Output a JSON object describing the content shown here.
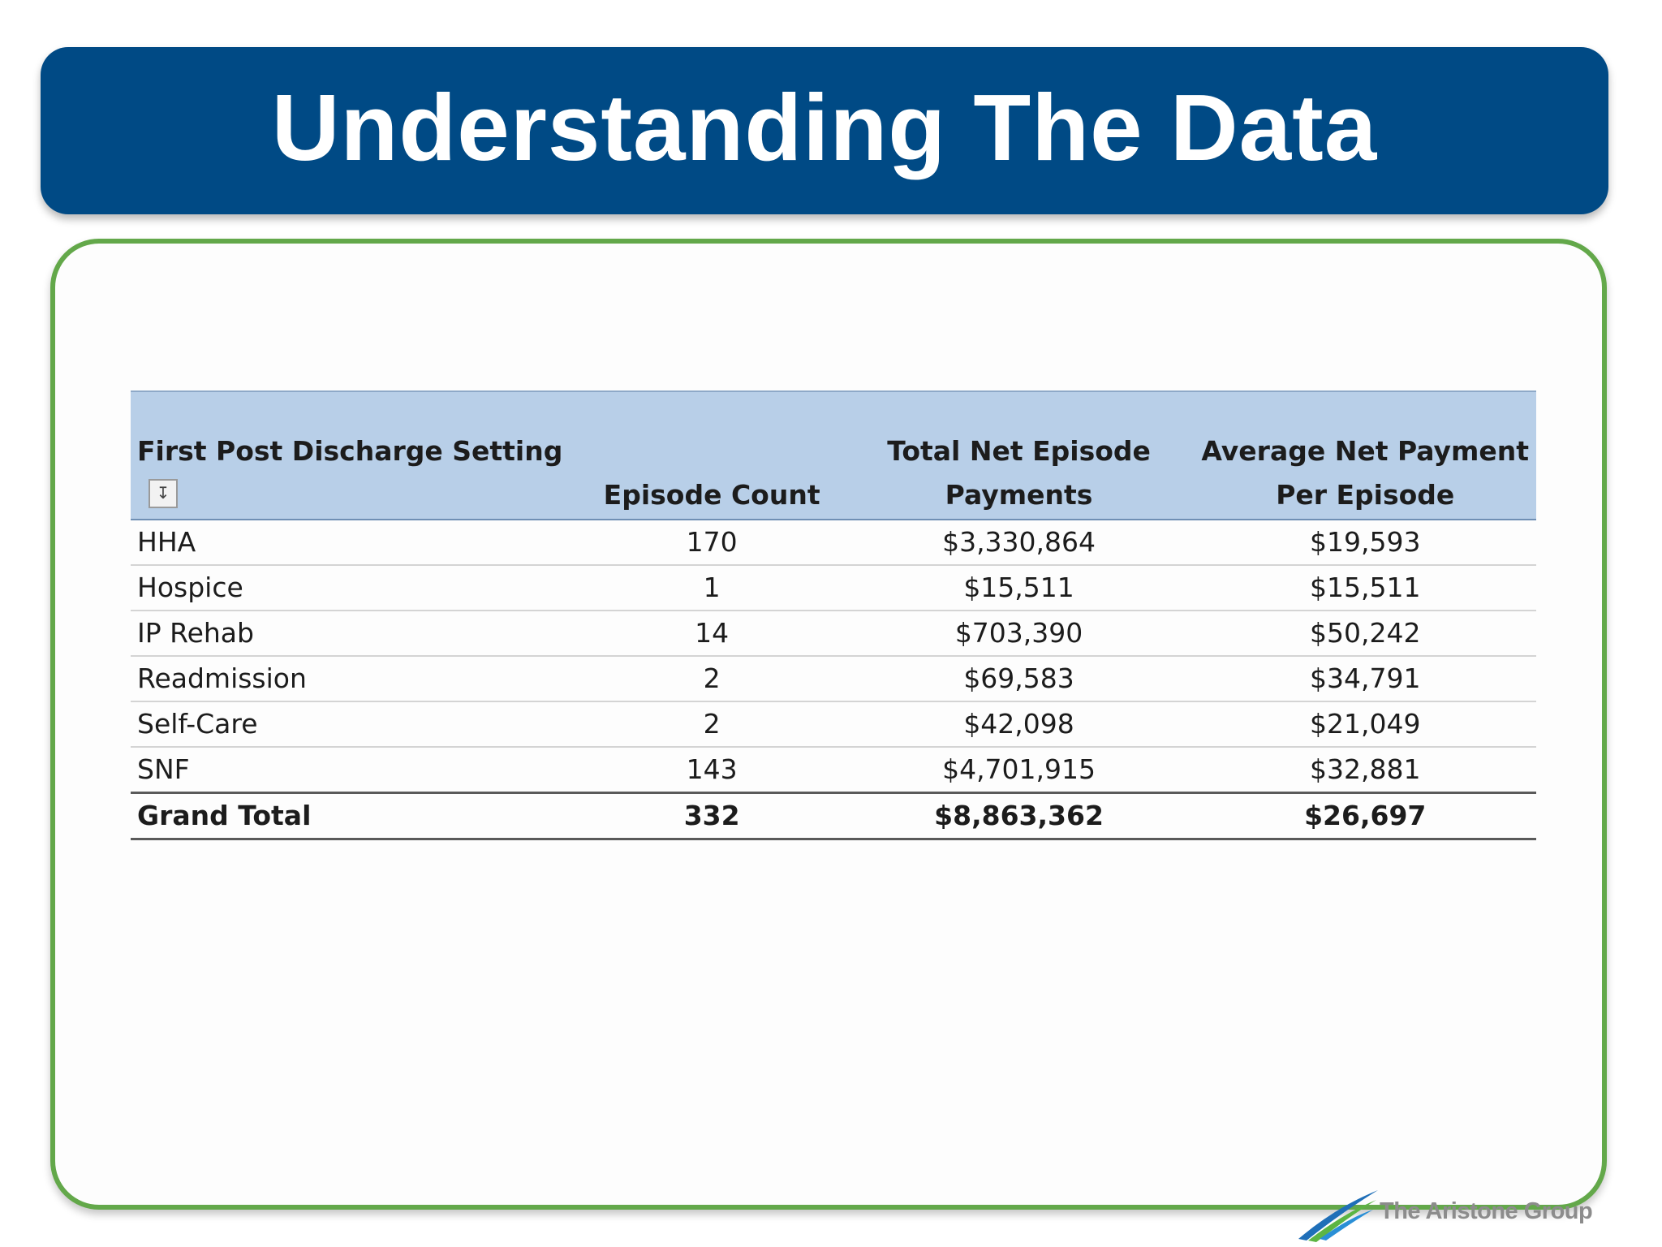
{
  "slide": {
    "title": "Understanding The Data"
  },
  "table": {
    "headers": {
      "setting": "First Post Discharge Setting",
      "count": "Episode Count",
      "total_line1": "Total Net Episode",
      "total_line2": "Payments",
      "avg_line1": "Average Net Payment",
      "avg_line2": "Per Episode"
    },
    "filter_icon": "sort-filter-icon",
    "rows": [
      {
        "setting": "HHA",
        "count": "170",
        "total": "$3,330,864",
        "avg": "$19,593"
      },
      {
        "setting": "Hospice",
        "count": "1",
        "total": "$15,511",
        "avg": "$15,511"
      },
      {
        "setting": "IP Rehab",
        "count": "14",
        "total": "$703,390",
        "avg": "$50,242"
      },
      {
        "setting": "Readmission",
        "count": "2",
        "total": "$69,583",
        "avg": "$34,791"
      },
      {
        "setting": "Self-Care",
        "count": "2",
        "total": "$42,098",
        "avg": "$21,049"
      },
      {
        "setting": "SNF",
        "count": "143",
        "total": "$4,701,915",
        "avg": "$32,881"
      }
    ],
    "total": {
      "setting": "Grand Total",
      "count": "332",
      "total": "$8,863,362",
      "avg": "$26,697"
    }
  },
  "logo": {
    "text": "The Aristone Group",
    "icon": "aristone-swoosh-logo"
  },
  "colors": {
    "banner": "#004a85",
    "frame_border": "#63a84a",
    "header_fill": "#b8cfe8",
    "logo_blue": "#1f6fb8",
    "logo_green": "#5cb543"
  }
}
